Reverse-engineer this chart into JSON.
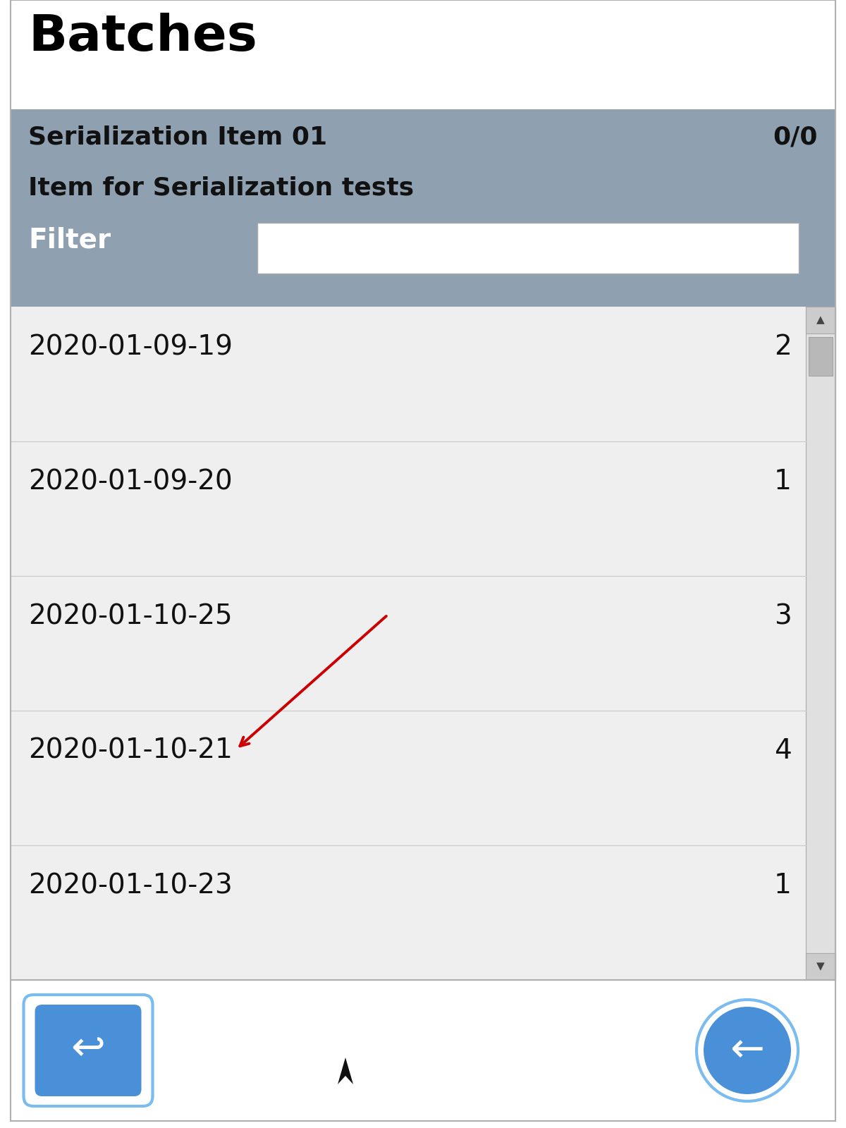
{
  "title": "Batches",
  "header_bg": "#8fa0b0",
  "header_item_name": "Serialization Item 01",
  "header_item_count": "0/0",
  "header_item_desc": "Item for Serialization tests",
  "filter_label": "Filter",
  "list_bg": "#efefef",
  "list_items": [
    {
      "date": "2020-01-09-19",
      "count": "2"
    },
    {
      "date": "2020-01-09-20",
      "count": "1"
    },
    {
      "date": "2020-01-10-25",
      "count": "3"
    },
    {
      "date": "2020-01-10-21",
      "count": "4"
    },
    {
      "date": "2020-01-10-23",
      "count": "1"
    }
  ],
  "arrow_color": "#cc0000",
  "btn_color": "#4a90d9",
  "btn_border_color": "#7bbcf0",
  "background_color": "#ffffff",
  "outer_border_color": "#b0b0b0",
  "scrollbar_bg": "#e0e0e0",
  "scrollbar_thumb": "#b8b8b8"
}
